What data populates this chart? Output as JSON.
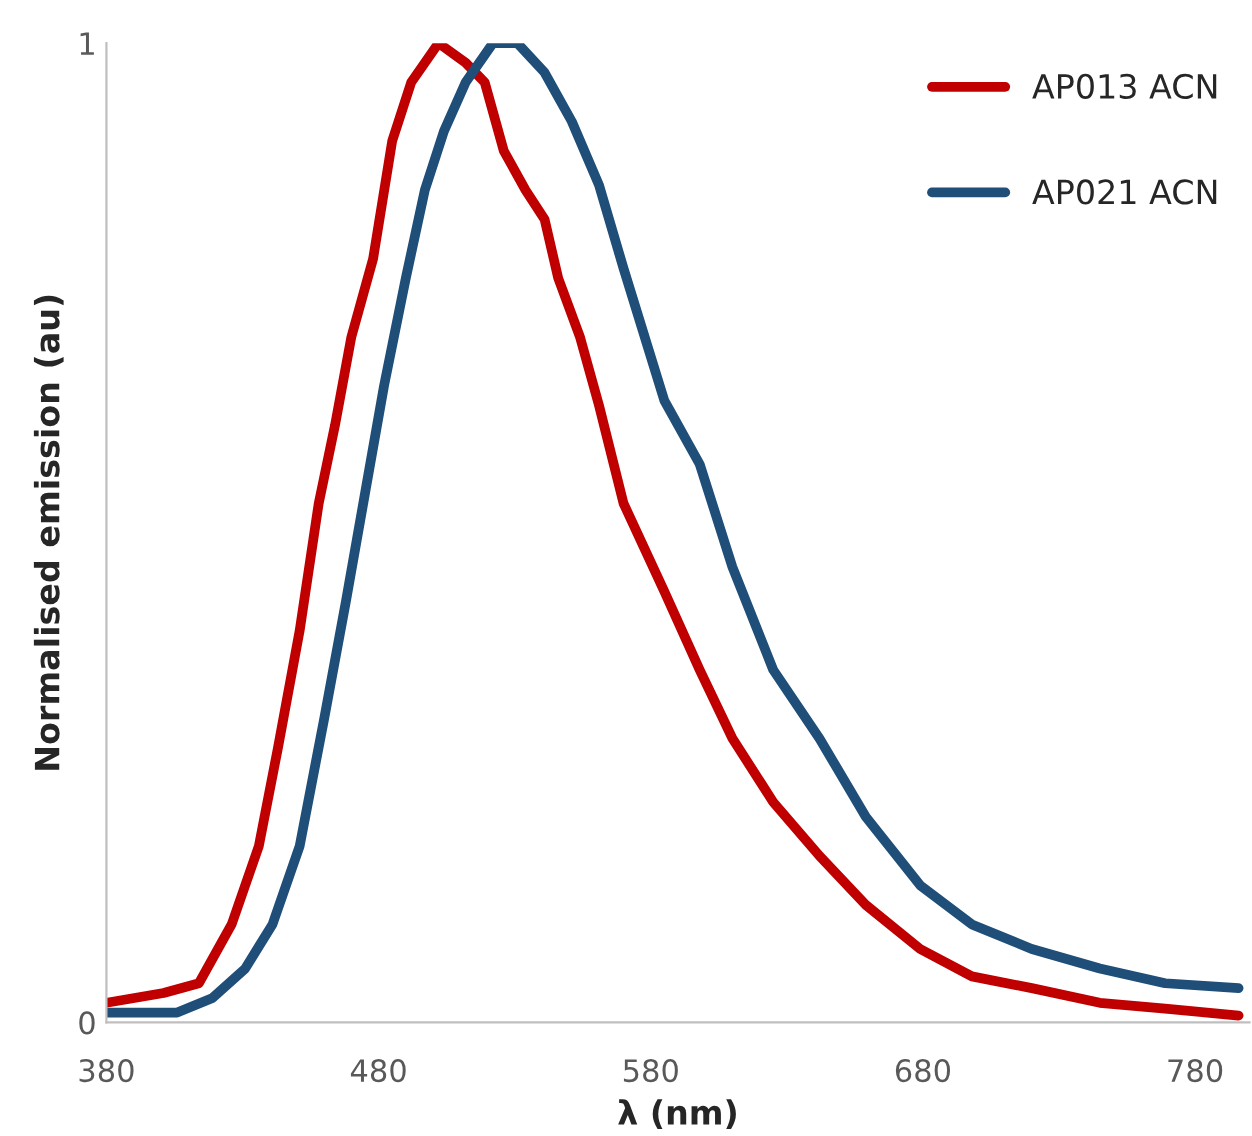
{
  "chart_data": {
    "type": "line",
    "xlabel": "λ (nm)",
    "ylabel": "Normalised emission (au)",
    "xlim": [
      380,
      800
    ],
    "xticks": [
      380,
      480,
      580,
      680,
      780
    ],
    "ylim": [
      0,
      1
    ],
    "yticks": [
      0,
      1
    ],
    "grid": false,
    "legend": "top right",
    "marker": "none",
    "line_style": "solid",
    "series": [
      {
        "name": "AP013 ACN",
        "color": "#c00000",
        "x": [
          380,
          401,
          414,
          426,
          436,
          443,
          451,
          458,
          464,
          470,
          478,
          485,
          492,
          497,
          502,
          512,
          519,
          526,
          534,
          541,
          546,
          554,
          561,
          570,
          585,
          598,
          610,
          625,
          642,
          659,
          679,
          698,
          720,
          745,
          769,
          796
        ],
        "values": [
          0.02,
          0.03,
          0.04,
          0.1,
          0.18,
          0.28,
          0.4,
          0.53,
          0.61,
          0.7,
          0.78,
          0.9,
          0.96,
          0.98,
          1.0,
          0.98,
          0.96,
          0.89,
          0.85,
          0.82,
          0.76,
          0.7,
          0.63,
          0.53,
          0.44,
          0.36,
          0.29,
          0.225,
          0.17,
          0.12,
          0.075,
          0.047,
          0.035,
          0.02,
          0.014,
          0.007
        ]
      },
      {
        "name": "AP021 ACN",
        "color": "#1f4e79",
        "x": [
          380,
          406,
          419,
          431,
          441,
          451,
          460,
          468,
          475,
          482,
          490,
          497,
          504,
          512,
          522,
          531,
          541,
          551,
          561,
          570,
          585,
          598,
          610,
          625,
          642,
          659,
          679,
          698,
          720,
          745,
          769,
          796
        ],
        "values": [
          0.01,
          0.01,
          0.025,
          0.055,
          0.1,
          0.18,
          0.31,
          0.43,
          0.54,
          0.65,
          0.76,
          0.85,
          0.91,
          0.96,
          1.0,
          1.0,
          0.97,
          0.92,
          0.855,
          0.77,
          0.635,
          0.57,
          0.465,
          0.36,
          0.29,
          0.21,
          0.14,
          0.1,
          0.075,
          0.055,
          0.04,
          0.035
        ]
      }
    ]
  }
}
